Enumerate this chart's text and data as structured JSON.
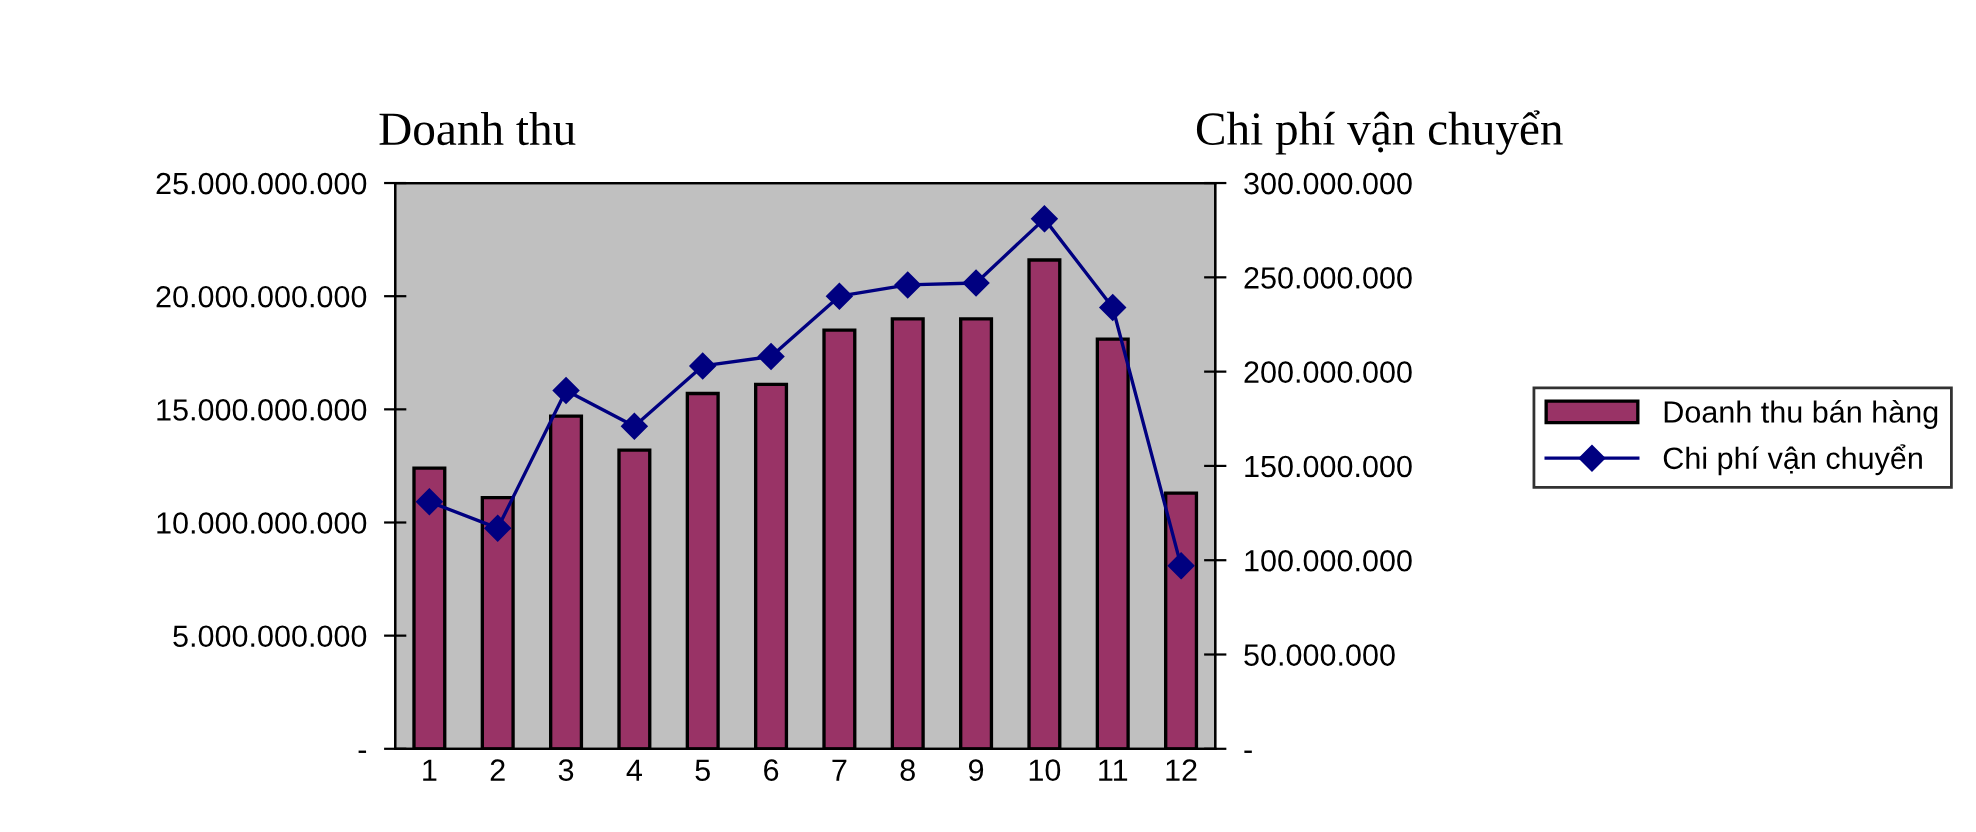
{
  "chart_data": {
    "type": "bar",
    "ylabel": "Doanh thu",
    "y2label": "Chi phí vận chuyển",
    "categories": [
      "1",
      "2",
      "3",
      "4",
      "5",
      "6",
      "7",
      "8",
      "9",
      "10",
      "11",
      "12"
    ],
    "series": [
      {
        "name": "Doanh thu bán hàng",
        "color": "#993366",
        "values": [
          12400000000,
          11100000000,
          14700000000,
          13200000000,
          15700000000,
          16100000000,
          18500000000,
          19000000000,
          19000000000,
          21600000000,
          18100000000,
          11300000000
        ]
      },
      {
        "name": "Chi phí vận chuyển",
        "type": "line",
        "axis": "y2",
        "color": "#000080",
        "marker": "diamond",
        "line_style": "solid",
        "values": [
          131000000,
          117000000,
          190000000,
          171000000,
          203000000,
          208000000,
          240000000,
          246000000,
          247000000,
          281000000,
          234000000,
          97000000
        ]
      }
    ],
    "ylim": [
      0,
      25000000000
    ],
    "yticks": [
      {
        "value": 0,
        "label": "-"
      },
      {
        "value": 5000000000,
        "label": "5.000.000.000"
      },
      {
        "value": 10000000000,
        "label": "10.000.000.000"
      },
      {
        "value": 15000000000,
        "label": "15.000.000.000"
      },
      {
        "value": 20000000000,
        "label": "20.000.000.000"
      },
      {
        "value": 25000000000,
        "label": "25.000.000.000"
      }
    ],
    "y2lim": [
      0,
      300000000
    ],
    "y2ticks": [
      {
        "value": 0,
        "label": "-"
      },
      {
        "value": 50000000,
        "label": "50.000.000"
      },
      {
        "value": 100000000,
        "label": "100.000.000"
      },
      {
        "value": 150000000,
        "label": "150.000.000"
      },
      {
        "value": 200000000,
        "label": "200.000.000"
      },
      {
        "value": 250000000,
        "label": "250.000.000"
      },
      {
        "value": 300000000,
        "label": "300.000.000"
      }
    ],
    "grid": false,
    "legend": "right"
  }
}
